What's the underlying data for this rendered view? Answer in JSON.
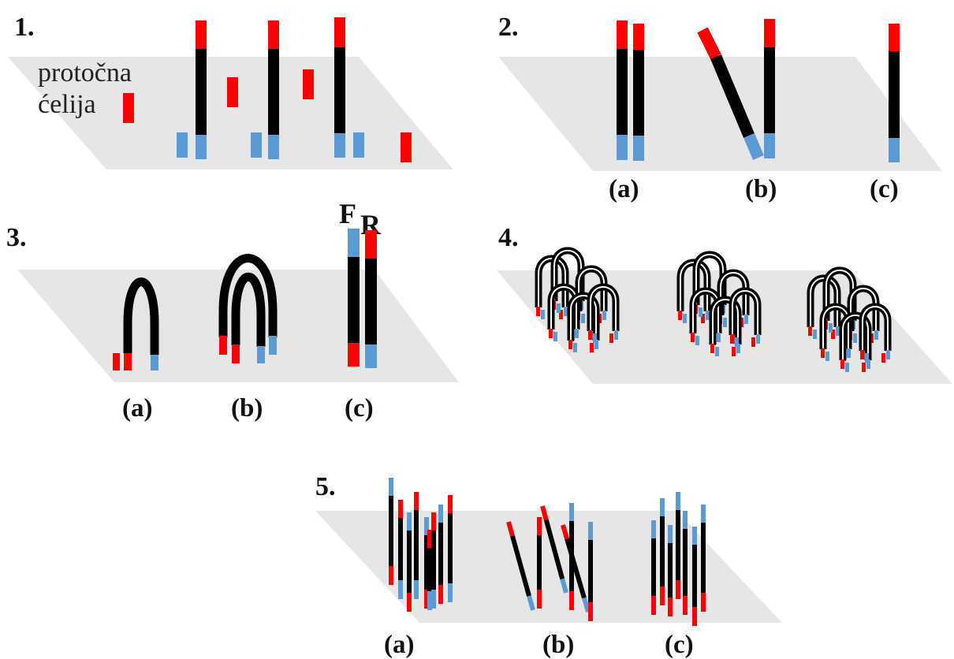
{
  "steps": {
    "s1": {
      "number": "1.",
      "caption_line1": "protočna",
      "caption_line2": "ćelija"
    },
    "s2": {
      "number": "2.",
      "labels": [
        "(a)",
        "(b)",
        "(c)"
      ]
    },
    "s3": {
      "number": "3.",
      "labels": [
        "(a)",
        "(b)",
        "(c)"
      ],
      "forward": "F",
      "reverse": "R"
    },
    "s4": {
      "number": "4."
    },
    "s5": {
      "number": "5.",
      "labels": [
        "(a)",
        "(b)",
        "(c)"
      ]
    }
  },
  "colors": {
    "flow_cell": "#e6e6e6",
    "dna": "#000000",
    "adapter_red": "#ff0000",
    "adapter_blue": "#5b9bd5",
    "bridge_highlight": "#ffffff"
  }
}
